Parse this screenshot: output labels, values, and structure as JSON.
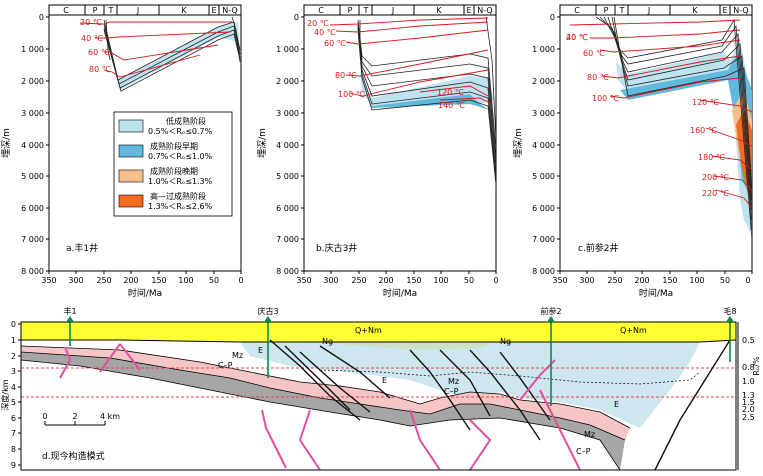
{
  "panels": [
    {
      "caption": "a.丰1井",
      "periods": [
        "C",
        "P",
        "T",
        "J",
        "K",
        "E",
        "N-Q"
      ],
      "x_label": "时间/Ma",
      "x_ticks": [
        "350",
        "300",
        "250",
        "200",
        "150",
        "100",
        "50",
        "0"
      ],
      "y_label": "埋深/m",
      "y_ticks": [
        "0",
        "1 000",
        "2 000",
        "3 000",
        "4 000",
        "5 000",
        "6 000",
        "7 000",
        "8 000"
      ],
      "isotherms": [
        "20 ℃",
        "40 ℃",
        "60 ℃",
        "80 ℃"
      ]
    },
    {
      "caption": "b.庆古3井",
      "periods": [
        "C",
        "P",
        "T",
        "J",
        "K",
        "E",
        "N-Q"
      ],
      "x_label": "时间/Ma",
      "x_ticks": [
        "350",
        "300",
        "250",
        "200",
        "150",
        "100",
        "50",
        "0"
      ],
      "y_label": "埋深/m",
      "y_ticks": [
        "0",
        "1 000",
        "2 000",
        "3 000",
        "4 000",
        "5 000",
        "6 000",
        "7 000",
        "8 000"
      ],
      "isotherms": [
        "20 ℃",
        "40 ℃",
        "60 ℃",
        "80 ℃",
        "100 ℃",
        "120 ℃",
        "140 ℃"
      ]
    },
    {
      "caption": "c.前参2井",
      "periods": [
        "C",
        "P",
        "T",
        "J",
        "K",
        "E",
        "N-Q"
      ],
      "x_label": "时间/Ma",
      "x_ticks": [
        "350",
        "300",
        "250",
        "200",
        "150",
        "100",
        "50",
        "0"
      ],
      "y_label": "埋深/m",
      "y_ticks": [
        "0",
        "1 000",
        "2 000",
        "3 000",
        "4 000",
        "5 000",
        "6 000",
        "7 000",
        "8 000"
      ],
      "isotherms": [
        "20 ℃",
        "40 ℃",
        "60 ℃",
        "80 ℃",
        "100 ℃",
        "120 ℃",
        "160 ℃",
        "180 ℃",
        "200 ℃",
        "220 ℃"
      ]
    }
  ],
  "legend": [
    {
      "name": "低成熟阶段",
      "range": "0.5%＜Rₒ≤0.7%",
      "color": "#bfe3ee"
    },
    {
      "name": "成熟阶段早期",
      "range": "0.7%＜Rₒ≤1.0%",
      "color": "#63b8dd"
    },
    {
      "name": "成熟阶段晚期",
      "range": "1.0%＜Rₒ≤1.3%",
      "color": "#f6bf8c"
    },
    {
      "name": "高—过成熟阶段",
      "range": "1.3%＜Rₒ≤2.6%",
      "color": "#f26b22"
    }
  ],
  "section": {
    "caption": "d.现今构造模式",
    "wells": [
      "丰1",
      "庆古3",
      "前参2",
      "毛8"
    ],
    "y_label": "深度/km",
    "y_ticks": [
      "0",
      "1",
      "2",
      "3",
      "4",
      "5",
      "6",
      "7",
      "8",
      "9"
    ],
    "ro_label": "Rₒ/%",
    "ro_ticks": [
      "0.5",
      "0.8",
      "1.0",
      "1.3",
      "1.5",
      "2.0",
      "2.5"
    ],
    "scale_ticks": [
      "0",
      "2",
      "4 km"
    ],
    "unit_labels": [
      "Q+Nm",
      "Q+Nm",
      "Ng",
      "Ng",
      "E",
      "E",
      "E",
      "Mz",
      "Mz",
      "Mz",
      "C–P",
      "C–P",
      "C–P"
    ]
  },
  "colors": {
    "low": "#bfe3ee",
    "early": "#63b8dd",
    "late": "#f6bf8c",
    "high": "#f26b22",
    "quaternary": "#ffff33",
    "paleogene": "#cde6ef",
    "mesozoic": "#f6c6c6",
    "carboniferous": "#a6a6a6",
    "isotherm": "#d7191c",
    "fault_red": "#e0519b",
    "dashed": "#e0474c"
  }
}
